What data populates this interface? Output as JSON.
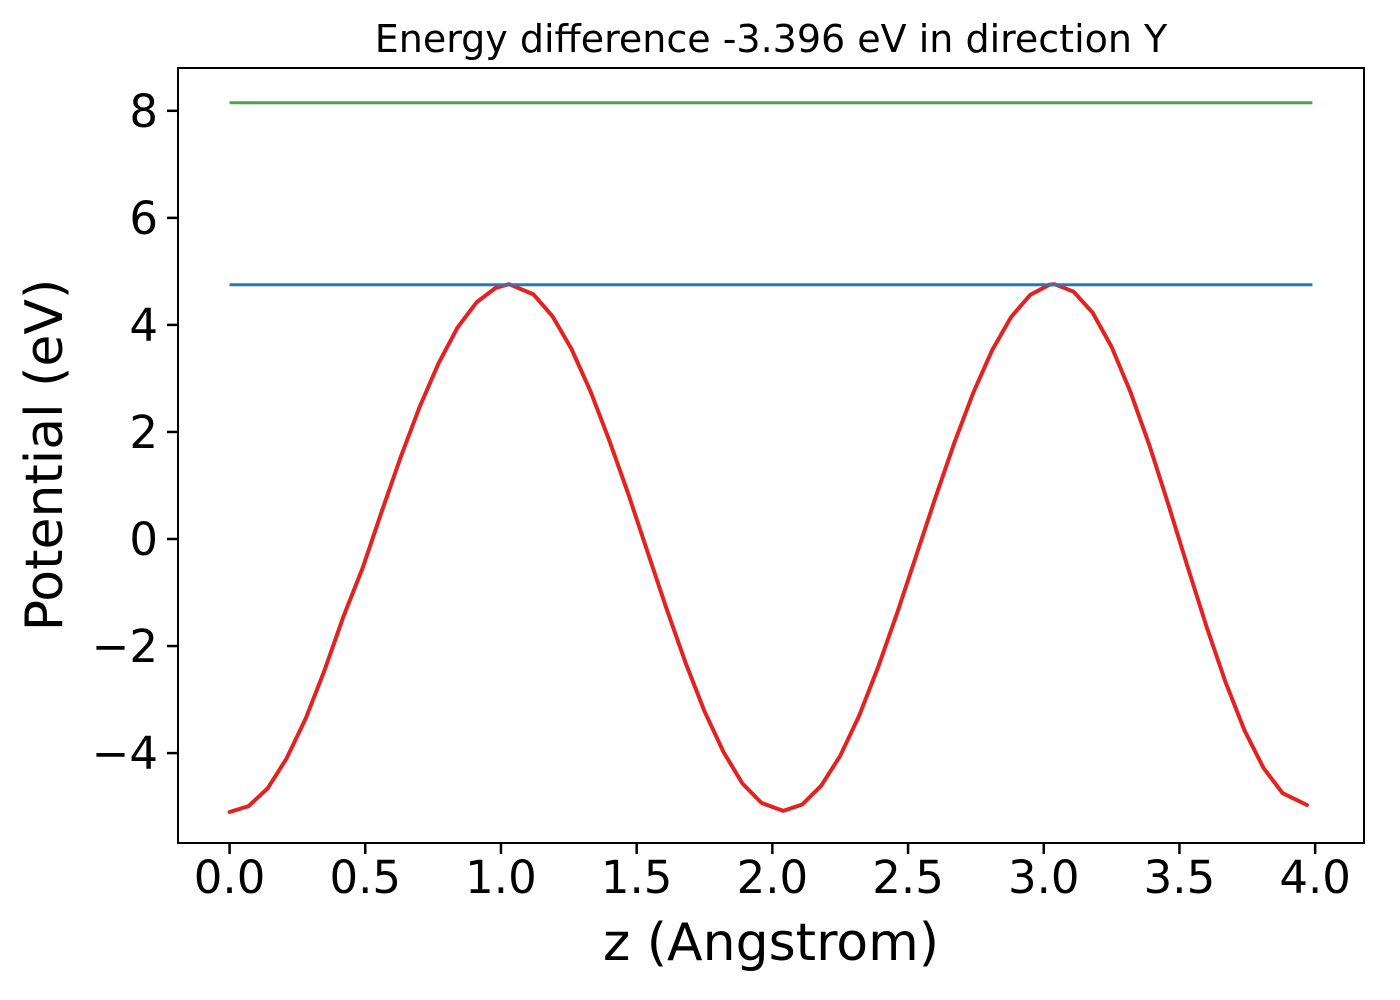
{
  "chart_data": {
    "type": "line",
    "title": "Energy difference -3.396 eV in direction Y",
    "xlabel": "z (Angstrom)",
    "ylabel": "Potential (eV)",
    "xlim": [
      -0.19,
      4.18
    ],
    "ylim": [
      -5.68,
      8.8
    ],
    "grid": false,
    "legend": false,
    "energy_difference_eV": -3.396,
    "direction": "Y",
    "x_ticks": {
      "values": [
        0.0,
        0.5,
        1.0,
        1.5,
        2.0,
        2.5,
        3.0,
        3.5,
        4.0
      ],
      "labels": [
        "0.0",
        "0.5",
        "1.0",
        "1.5",
        "2.0",
        "2.5",
        "3.0",
        "3.5",
        "4.0"
      ]
    },
    "y_ticks": {
      "values": [
        8,
        6,
        4,
        2,
        0,
        -2,
        -4
      ],
      "labels": [
        "8",
        "6",
        "4",
        "2",
        "0",
        "−2",
        "−4"
      ]
    },
    "axis_color": "#000000",
    "series": [
      {
        "name": "potential-curve",
        "style": "line",
        "color": "#e32222",
        "width": 4,
        "x": [
          0.0,
          0.07,
          0.14,
          0.21,
          0.28,
          0.35,
          0.42,
          0.49,
          0.56,
          0.63,
          0.7,
          0.77,
          0.84,
          0.91,
          0.98,
          1.03,
          1.12,
          1.19,
          1.26,
          1.33,
          1.4,
          1.47,
          1.54,
          1.61,
          1.68,
          1.75,
          1.82,
          1.89,
          1.96,
          2.04,
          2.11,
          2.18,
          2.25,
          2.32,
          2.39,
          2.46,
          2.53,
          2.6,
          2.67,
          2.74,
          2.81,
          2.88,
          2.95,
          3.02,
          3.04,
          3.11,
          3.18,
          3.25,
          3.32,
          3.39,
          3.46,
          3.53,
          3.6,
          3.67,
          3.74,
          3.81,
          3.88,
          3.97
        ],
        "y": [
          -5.1,
          -4.99,
          -4.66,
          -4.1,
          -3.36,
          -2.45,
          -1.44,
          -0.55,
          0.5,
          1.52,
          2.46,
          3.28,
          3.95,
          4.42,
          4.69,
          4.76,
          4.57,
          4.16,
          3.55,
          2.76,
          1.83,
          0.83,
          -0.24,
          -1.3,
          -2.31,
          -3.22,
          -3.98,
          -4.57,
          -4.93,
          -5.08,
          -4.96,
          -4.61,
          -4.05,
          -3.3,
          -2.39,
          -1.38,
          -0.31,
          0.76,
          1.79,
          2.73,
          3.53,
          4.15,
          4.56,
          4.75,
          4.76,
          4.62,
          4.23,
          3.59,
          2.74,
          1.74,
          0.63,
          -0.52,
          -1.64,
          -2.68,
          -3.58,
          -4.28,
          -4.75,
          -4.97
        ]
      },
      {
        "name": "upper-vacuum-level-line",
        "style": "hline",
        "color": "#43a947",
        "width": 3,
        "value": 8.15,
        "x_start": 0.0,
        "x_end": 3.99
      },
      {
        "name": "lower-vacuum-level-line",
        "style": "hline",
        "color": "#2878b5",
        "width": 3,
        "value": 4.75,
        "x_start": 0.0,
        "x_end": 3.99
      }
    ]
  }
}
